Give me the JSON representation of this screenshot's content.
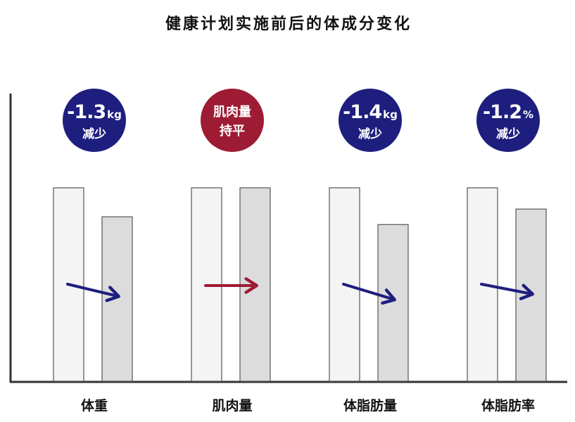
{
  "chart_data": {
    "type": "bar",
    "title": "健康计划实施前后的体成分变化",
    "categories": [
      "体重",
      "肌肉量",
      "体脂肪量",
      "体脂肪率"
    ],
    "series": [
      {
        "values": [
          100,
          100,
          100,
          100
        ]
      },
      {
        "values": [
          85,
          100,
          81,
          89
        ]
      }
    ],
    "ylim": [
      0,
      100
    ],
    "grid": false,
    "badges": [
      {
        "value": "-1.3",
        "unit": "kg",
        "text": "减少",
        "color": "#1e1e7e"
      },
      {
        "value": "肌肉量",
        "unit": "",
        "text": "持平",
        "color": "#9e1b34"
      },
      {
        "value": "-1.4",
        "unit": "kg",
        "text": "减少",
        "color": "#1e1e7e"
      },
      {
        "value": "-1.2",
        "unit": "%",
        "text": "减少",
        "color": "#1e1e7e"
      }
    ],
    "arrow_colors": [
      "#1e1e7e",
      "#9e1b34",
      "#1e1e7e",
      "#1e1e7e"
    ],
    "colors": {
      "before": "#f4f4f4",
      "after": "#dcdcdc",
      "edge": "#555555",
      "axis": "#333333"
    }
  }
}
